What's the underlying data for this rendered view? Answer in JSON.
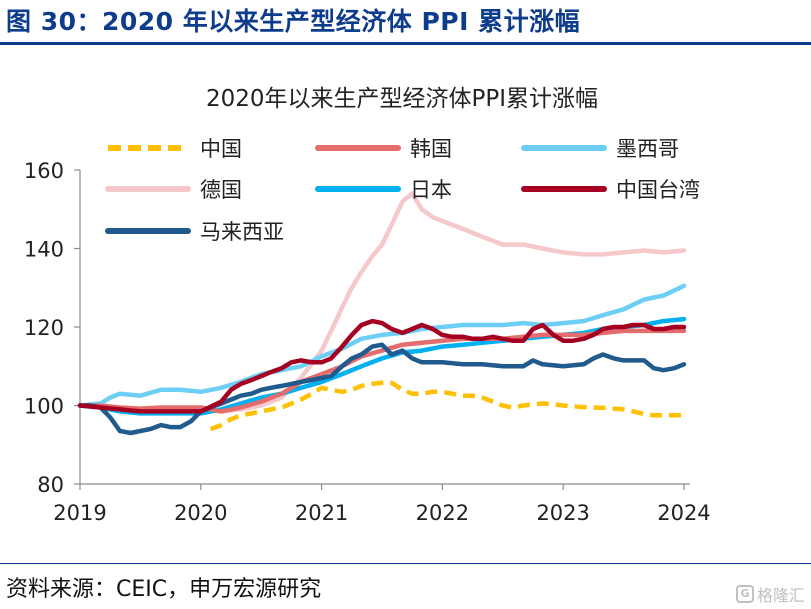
{
  "figure": {
    "label": "图 30：2020 年以来生产型经济体 PPI 累计涨幅",
    "source": "资料来源：CEIC，申万宏源研究",
    "watermark": "格隆汇",
    "watermark_icon": "G"
  },
  "chart_data": {
    "type": "line",
    "title": "2020年以来生产型经济体PPI累计涨幅",
    "xlabel": "",
    "ylabel": "",
    "ylim": [
      80,
      160
    ],
    "yticks": [
      80,
      100,
      120,
      140,
      160
    ],
    "xlim": [
      2019.0,
      2024.05
    ],
    "xticks": [
      2019,
      2020,
      2021,
      2022,
      2023,
      2024
    ],
    "xtick_labels": [
      "2019",
      "2020",
      "2021",
      "2022",
      "2023",
      "2024"
    ],
    "grid": false,
    "legend_position": "top",
    "series": [
      {
        "name": "中国",
        "color": "#ffc000",
        "style": "dashed",
        "x": [
          2020.08,
          2020.17,
          2020.25,
          2020.33,
          2020.42,
          2020.5,
          2020.58,
          2020.67,
          2020.75,
          2020.83,
          2020.92,
          2021.0,
          2021.08,
          2021.17,
          2021.25,
          2021.33,
          2021.42,
          2021.5,
          2021.58,
          2021.67,
          2021.75,
          2021.83,
          2021.92,
          2022.0,
          2022.08,
          2022.17,
          2022.25,
          2022.33,
          2022.42,
          2022.5,
          2022.58,
          2022.67,
          2022.75,
          2022.83,
          2022.92,
          2023.0,
          2023.08,
          2023.17,
          2023.25,
          2023.33,
          2023.42,
          2023.5,
          2023.58,
          2023.67,
          2023.75,
          2023.83,
          2023.92,
          2024.0
        ],
        "y": [
          94,
          95,
          96.5,
          97.5,
          98,
          98.5,
          99,
          99.5,
          100.5,
          101.5,
          103,
          104.5,
          104,
          103.5,
          104,
          105,
          105.5,
          105.8,
          105.8,
          104,
          103,
          103,
          103.5,
          103.5,
          103,
          102.5,
          102.5,
          102,
          101,
          100,
          99.5,
          100,
          100.3,
          100.5,
          100.3,
          100,
          99.8,
          99.6,
          99.5,
          99.4,
          99.2,
          99,
          98.5,
          97.8,
          97.5,
          97.5,
          97.5,
          97.5
        ]
      },
      {
        "name": "韩国",
        "color": "#e46c6c",
        "style": "solid",
        "x": [
          2019.0,
          2019.17,
          2019.33,
          2019.5,
          2019.67,
          2019.83,
          2020.0,
          2020.17,
          2020.33,
          2020.5,
          2020.67,
          2020.83,
          2021.0,
          2021.17,
          2021.33,
          2021.5,
          2021.67,
          2021.83,
          2022.0,
          2022.17,
          2022.33,
          2022.5,
          2022.67,
          2022.83,
          2023.0,
          2023.17,
          2023.33,
          2023.5,
          2023.67,
          2023.83,
          2024.0
        ],
        "y": [
          100,
          100,
          99.5,
          99.2,
          99.5,
          99.5,
          99.5,
          98.5,
          99.5,
          101,
          103,
          106,
          108,
          110,
          112.5,
          114,
          115.5,
          116,
          116.5,
          117,
          117,
          117,
          117.5,
          118,
          118,
          118,
          118.5,
          119,
          119,
          119,
          119
        ]
      },
      {
        "name": "墨西哥",
        "color": "#6dcff6",
        "style": "solid",
        "x": [
          2019.0,
          2019.17,
          2019.25,
          2019.33,
          2019.5,
          2019.67,
          2019.83,
          2020.0,
          2020.17,
          2020.33,
          2020.5,
          2020.67,
          2020.83,
          2021.0,
          2021.17,
          2021.33,
          2021.5,
          2021.67,
          2021.83,
          2022.0,
          2022.17,
          2022.33,
          2022.5,
          2022.67,
          2022.83,
          2023.0,
          2023.17,
          2023.33,
          2023.5,
          2023.67,
          2023.83,
          2024.0
        ],
        "y": [
          100,
          100.5,
          102,
          103,
          102.5,
          104,
          104,
          103.5,
          104.5,
          106,
          108,
          109,
          110,
          112.5,
          114.5,
          117,
          118,
          118.5,
          119.5,
          120,
          120.5,
          120.5,
          120.5,
          121,
          120.5,
          121,
          121.5,
          123,
          124.5,
          127,
          128,
          130.5
        ]
      },
      {
        "name": "德国",
        "color": "#f5c9cb",
        "style": "solid",
        "x": [
          2019.0,
          2019.17,
          2019.33,
          2019.5,
          2019.67,
          2019.83,
          2020.0,
          2020.17,
          2020.33,
          2020.5,
          2020.67,
          2020.83,
          2021.0,
          2021.08,
          2021.17,
          2021.25,
          2021.33,
          2021.42,
          2021.5,
          2021.58,
          2021.67,
          2021.75,
          2021.83,
          2021.92,
          2022.0,
          2022.17,
          2022.33,
          2022.5,
          2022.67,
          2022.83,
          2023.0,
          2023.17,
          2023.33,
          2023.5,
          2023.67,
          2023.83,
          2024.0
        ],
        "y": [
          100,
          99.5,
          99,
          98.5,
          99,
          99,
          99,
          98.5,
          99,
          100,
          102,
          107,
          114,
          119,
          125,
          130,
          134,
          138,
          141,
          146,
          152,
          154,
          150,
          148,
          147,
          145,
          143,
          141,
          141,
          140,
          139,
          138.5,
          138.5,
          139,
          139.5,
          139,
          139.5
        ]
      },
      {
        "name": "日本",
        "color": "#00b0f0",
        "style": "solid",
        "x": [
          2019.0,
          2019.17,
          2019.33,
          2019.5,
          2019.67,
          2019.83,
          2020.0,
          2020.17,
          2020.33,
          2020.5,
          2020.67,
          2020.83,
          2021.0,
          2021.17,
          2021.33,
          2021.5,
          2021.67,
          2021.83,
          2022.0,
          2022.17,
          2022.33,
          2022.5,
          2022.67,
          2022.83,
          2023.0,
          2023.17,
          2023.33,
          2023.5,
          2023.67,
          2023.83,
          2024.0
        ],
        "y": [
          100,
          99.5,
          98.5,
          98,
          98,
          98,
          98,
          99,
          100.5,
          102,
          103,
          104.5,
          106,
          108,
          110,
          112,
          113.5,
          114,
          115,
          115.5,
          116,
          116.5,
          117,
          117.5,
          118,
          118.5,
          119.5,
          120,
          120.5,
          121.5,
          122
        ]
      },
      {
        "name": "中国台湾",
        "color": "#a50021",
        "style": "solid",
        "x": [
          2019.0,
          2019.17,
          2019.33,
          2019.5,
          2019.67,
          2019.83,
          2020.0,
          2020.17,
          2020.25,
          2020.33,
          2020.42,
          2020.5,
          2020.58,
          2020.67,
          2020.75,
          2020.83,
          2020.92,
          2021.0,
          2021.08,
          2021.17,
          2021.25,
          2021.33,
          2021.42,
          2021.5,
          2021.58,
          2021.67,
          2021.75,
          2021.83,
          2021.92,
          2022.0,
          2022.08,
          2022.17,
          2022.25,
          2022.33,
          2022.42,
          2022.5,
          2022.58,
          2022.67,
          2022.75,
          2022.83,
          2022.92,
          2023.0,
          2023.08,
          2023.17,
          2023.25,
          2023.33,
          2023.42,
          2023.5,
          2023.58,
          2023.67,
          2023.75,
          2023.83,
          2023.92,
          2024.0
        ],
        "y": [
          100,
          99.5,
          99,
          98.5,
          98.5,
          98.5,
          98.5,
          101,
          104,
          105.5,
          106.5,
          107.5,
          108.5,
          109.5,
          111,
          111.5,
          111,
          111,
          112,
          115,
          118,
          120.5,
          121.5,
          121,
          119.5,
          118.5,
          119.5,
          120.5,
          119.5,
          118,
          117.5,
          117.5,
          117,
          117,
          117.5,
          117,
          116.5,
          116.5,
          119.5,
          120.5,
          118,
          116.5,
          116.5,
          117,
          118,
          119.5,
          120,
          120,
          120.5,
          120.5,
          119.5,
          119.5,
          120,
          120
        ]
      },
      {
        "name": "马来西亚",
        "color": "#215a8c",
        "style": "solid",
        "x": [
          2019.0,
          2019.08,
          2019.17,
          2019.25,
          2019.33,
          2019.42,
          2019.5,
          2019.58,
          2019.67,
          2019.75,
          2019.83,
          2019.92,
          2020.0,
          2020.08,
          2020.17,
          2020.25,
          2020.33,
          2020.42,
          2020.5,
          2020.58,
          2020.67,
          2020.75,
          2020.83,
          2020.92,
          2021.0,
          2021.08,
          2021.17,
          2021.25,
          2021.33,
          2021.42,
          2021.5,
          2021.58,
          2021.67,
          2021.75,
          2021.83,
          2021.92,
          2022.0,
          2022.17,
          2022.33,
          2022.5,
          2022.67,
          2022.75,
          2022.83,
          2023.0,
          2023.17,
          2023.25,
          2023.33,
          2023.42,
          2023.5,
          2023.67,
          2023.75,
          2023.83,
          2023.92,
          2024.0
        ],
        "y": [
          100,
          100,
          99.5,
          97,
          93.5,
          93,
          93.5,
          94,
          95,
          94.5,
          94.5,
          96,
          98.5,
          99.5,
          100.5,
          101.5,
          102.5,
          103,
          104,
          104.5,
          105,
          105.5,
          106,
          106.5,
          107,
          107.5,
          110,
          112,
          113,
          115,
          115.5,
          113,
          114,
          112,
          111,
          111,
          111,
          110.5,
          110.5,
          110,
          110,
          111.5,
          110.5,
          110,
          110.5,
          112,
          113,
          112,
          111.5,
          111.5,
          109.5,
          109,
          109.5,
          110.5
        ]
      }
    ]
  }
}
